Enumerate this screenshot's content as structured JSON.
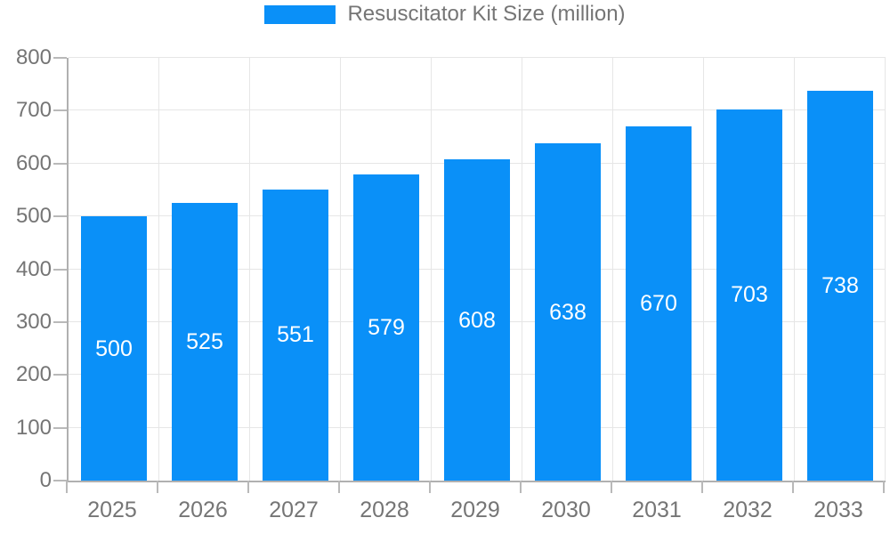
{
  "chart_data": {
    "type": "bar",
    "title": "",
    "legend": {
      "position": "top",
      "items": [
        {
          "label": "Resuscitator Kit Size (million)",
          "color": "#0a90f8"
        }
      ]
    },
    "categories": [
      "2025",
      "2026",
      "2027",
      "2028",
      "2029",
      "2030",
      "2031",
      "2032",
      "2033"
    ],
    "series": [
      {
        "name": "Resuscitator Kit Size (million)",
        "color": "#0a90f8",
        "values": [
          500,
          525,
          551,
          579,
          608,
          638,
          670,
          703,
          738
        ]
      }
    ],
    "xlabel": "",
    "ylabel": "",
    "ylim": [
      0,
      800
    ],
    "yticks": [
      0,
      100,
      200,
      300,
      400,
      500,
      600,
      700,
      800
    ],
    "grid": "horizontal-and-vertical",
    "value_labels": {
      "position": "inside-center",
      "color": "#ffffff"
    }
  },
  "style": {
    "background": "#ffffff",
    "bar_color": "#0a90f8",
    "grid_color": "#e6e6e6",
    "axis_color": "#b0b0b0",
    "tick_color": "#b9b9b9",
    "label_color": "#757575",
    "bar_label_color": "#ffffff"
  }
}
